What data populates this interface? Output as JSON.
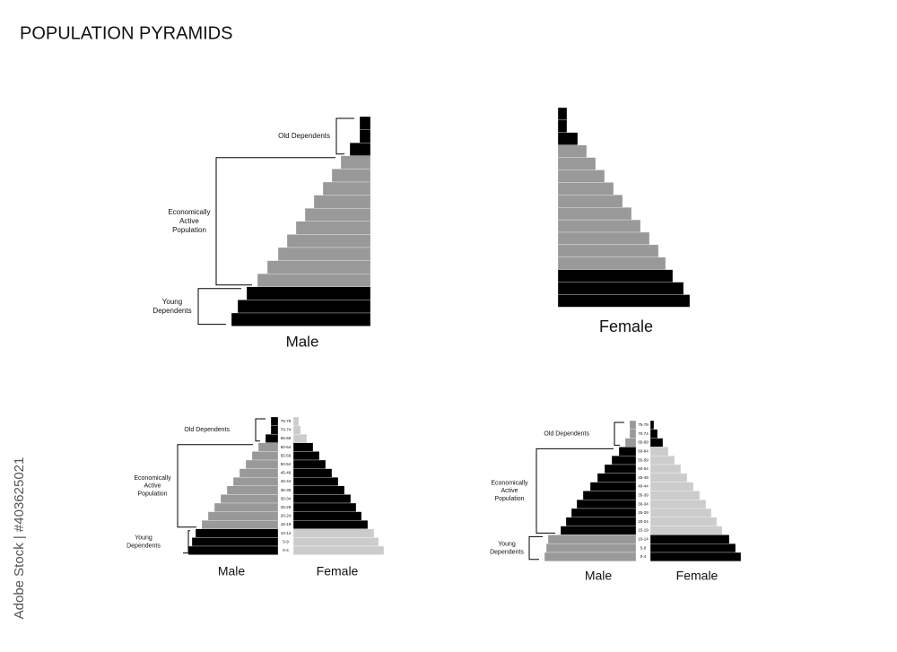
{
  "title": "POPULATION PYRAMIDS",
  "watermark": "Adobe Stock | #403625021",
  "age_groups": [
    "75-79",
    "70-74",
    "65-69",
    "60-64",
    "55-59",
    "50-54",
    "45-49",
    "40-44",
    "35-39",
    "30-34",
    "25-29",
    "20-24",
    "15-19",
    "10-14",
    "5-9",
    "0-4"
  ],
  "panels": [
    {
      "sides": [
        {
          "label": "Male",
          "colors": [
            "#000000",
            "#999999",
            "#000000"
          ],
          "widths": [
            12,
            12,
            23,
            33,
            43,
            53,
            63,
            73,
            83,
            93,
            103,
            115,
            126,
            138,
            148,
            155
          ]
        }
      ],
      "annotations": [
        {
          "lines": [
            "Old Dependents"
          ]
        },
        {
          "lines": [
            "Economically",
            "Active",
            "Population"
          ]
        },
        {
          "lines": [
            "Young",
            "Dependents"
          ]
        }
      ]
    },
    {
      "sides": [
        {
          "label": "Female",
          "colors": [
            "#000000",
            "#999999",
            "#000000"
          ],
          "widths": [
            10,
            10,
            22,
            32,
            42,
            52,
            62,
            72,
            82,
            92,
            102,
            112,
            120,
            128,
            140,
            147
          ]
        }
      ]
    },
    {
      "sides": [
        {
          "label": "Male",
          "colors": [
            "#000000",
            "#999999",
            "#000000"
          ],
          "widths": [
            8,
            8,
            14,
            22,
            29,
            36,
            43,
            50,
            57,
            64,
            71,
            78,
            85,
            92,
            96,
            100
          ]
        },
        {
          "label": "Female",
          "colors": [
            "#cccccc",
            "#000000",
            "#cccccc"
          ],
          "widths": [
            6,
            8,
            15,
            22,
            29,
            36,
            43,
            50,
            57,
            64,
            70,
            76,
            83,
            90,
            95,
            101
          ]
        }
      ],
      "annotations": [
        {
          "lines": [
            "Old Dependents"
          ]
        },
        {
          "lines": [
            "Economically",
            "Active",
            "Population"
          ]
        },
        {
          "lines": [
            "Young",
            "Dependents"
          ]
        }
      ]
    },
    {
      "sides": [
        {
          "label": "Male",
          "colors": [
            "#999999",
            "#000000",
            "#999999"
          ],
          "widths": [
            7,
            7,
            12,
            19,
            27,
            35,
            43,
            51,
            59,
            66,
            72,
            78,
            84,
            98,
            100,
            102
          ]
        },
        {
          "label": "Female",
          "colors": [
            "#000000",
            "#cccccc",
            "#000000"
          ],
          "widths": [
            4,
            8,
            14,
            20,
            27,
            34,
            41,
            48,
            55,
            62,
            68,
            74,
            80,
            88,
            95,
            101
          ]
        }
      ],
      "annotations": [
        {
          "lines": [
            "Old Dependents"
          ]
        },
        {
          "lines": [
            "Economically",
            "Active",
            "Population"
          ]
        },
        {
          "lines": [
            "Young",
            "Dependents"
          ]
        }
      ]
    }
  ]
}
